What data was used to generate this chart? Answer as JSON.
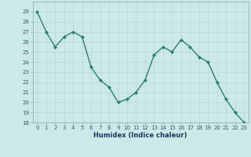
{
  "x": [
    0,
    1,
    2,
    3,
    4,
    5,
    6,
    7,
    8,
    9,
    10,
    11,
    12,
    13,
    14,
    15,
    16,
    17,
    18,
    19,
    20,
    21,
    22,
    23
  ],
  "y": [
    29,
    27,
    25.5,
    26.5,
    27,
    26.5,
    23.5,
    22.2,
    21.5,
    20,
    20.3,
    21,
    22.2,
    24.7,
    25.5,
    25,
    26.2,
    25.5,
    24.5,
    24,
    22,
    20.3,
    19,
    18
  ],
  "line_color": "#2e7d6e",
  "marker": "D",
  "marker_size": 2,
  "bg_color": "#cce8e8",
  "grid_color": "#b8d8d8",
  "xlabel": "Humidex (Indice chaleur)",
  "ylim": [
    18,
    30
  ],
  "xlim": [
    -0.5,
    23.5
  ],
  "yticks": [
    18,
    19,
    20,
    21,
    22,
    23,
    24,
    25,
    26,
    27,
    28,
    29
  ],
  "xticks": [
    0,
    1,
    2,
    3,
    4,
    5,
    6,
    7,
    8,
    9,
    10,
    11,
    12,
    13,
    14,
    15,
    16,
    17,
    18,
    19,
    20,
    21,
    22,
    23
  ],
  "tick_fontsize": 5.0,
  "xlabel_fontsize": 6.0,
  "line_width": 1.0
}
